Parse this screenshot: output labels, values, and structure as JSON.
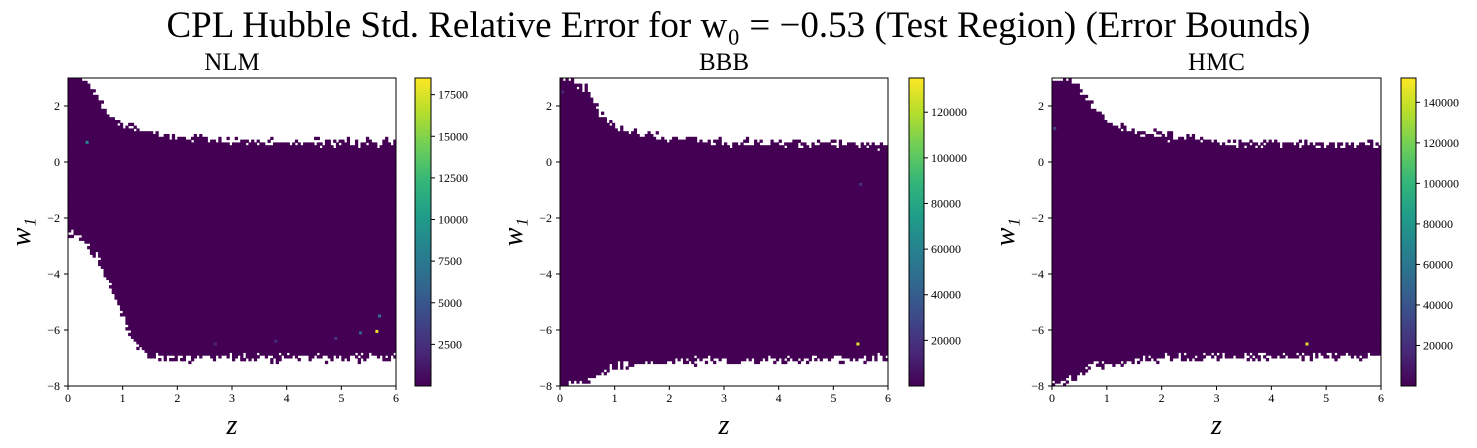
{
  "figure": {
    "title": "CPL Hubble Std. Relative Error for w₀ = −0.53 (Test Region) (Error Bounds)"
  },
  "colormap": {
    "name": "viridis",
    "stops": [
      "#440154",
      "#482878",
      "#3e4989",
      "#31688e",
      "#26828e",
      "#1f9e89",
      "#35b779",
      "#6ece58",
      "#b5de2b",
      "#fde725"
    ]
  },
  "chart_data": [
    {
      "type": "heatmap",
      "title": "NLM",
      "xlabel": "z",
      "ylabel": "w₁",
      "xlim": [
        0,
        6
      ],
      "ylim": [
        -8,
        3
      ],
      "xticks": [
        "0",
        "1",
        "2",
        "3",
        "4",
        "5",
        "6"
      ],
      "yticks": [
        "−8",
        "−6",
        "−4",
        "−2",
        "0",
        "2"
      ],
      "colorbar": {
        "min": 0,
        "max": 18500,
        "ticks": [
          "2500",
          "5000",
          "7500",
          "10000",
          "12500",
          "15000",
          "17500"
        ]
      },
      "background_value": 0,
      "upper_boundary": [
        [
          0,
          3.0
        ],
        [
          0.25,
          3.0
        ],
        [
          0.5,
          2.4
        ],
        [
          0.75,
          1.7
        ],
        [
          1.0,
          1.3
        ],
        [
          1.5,
          1.05
        ],
        [
          2.0,
          0.9
        ],
        [
          3.0,
          0.75
        ],
        [
          4.0,
          0.7
        ],
        [
          6.0,
          0.7
        ]
      ],
      "lower_boundary": [
        [
          0,
          -2.5
        ],
        [
          0.3,
          -2.8
        ],
        [
          0.6,
          -3.6
        ],
        [
          0.9,
          -5.0
        ],
        [
          1.2,
          -6.4
        ],
        [
          1.5,
          -6.9
        ],
        [
          2.0,
          -7.0
        ],
        [
          6.0,
          -7.0
        ]
      ],
      "hot_spots": [
        {
          "z": 0.35,
          "w1": 0.7,
          "value": 8500
        },
        {
          "z": 5.65,
          "w1": -6.05,
          "value": 18000
        },
        {
          "z": 5.7,
          "w1": -5.5,
          "value": 7000
        },
        {
          "z": 5.35,
          "w1": -6.1,
          "value": 6000
        },
        {
          "z": 4.9,
          "w1": -6.3,
          "value": 3000
        },
        {
          "z": 3.8,
          "w1": -6.4,
          "value": 2500
        },
        {
          "z": 2.7,
          "w1": -6.5,
          "value": 2000
        }
      ]
    },
    {
      "type": "heatmap",
      "title": "BBB",
      "xlabel": "z",
      "ylabel": "w₁",
      "xlim": [
        0,
        6
      ],
      "ylim": [
        -8,
        3
      ],
      "xticks": [
        "0",
        "1",
        "2",
        "3",
        "4",
        "5",
        "6"
      ],
      "yticks": [
        "−8",
        "−6",
        "−4",
        "−2",
        "0",
        "2"
      ],
      "colorbar": {
        "min": 0,
        "max": 135000,
        "ticks": [
          "20000",
          "40000",
          "60000",
          "80000",
          "100000",
          "120000"
        ]
      },
      "background_value": 0,
      "upper_boundary": [
        [
          0,
          3.0
        ],
        [
          0.5,
          2.6
        ],
        [
          0.75,
          1.7
        ],
        [
          1.0,
          1.2
        ],
        [
          1.5,
          1.0
        ],
        [
          2.0,
          0.85
        ],
        [
          3.0,
          0.7
        ],
        [
          6.0,
          0.6
        ]
      ],
      "lower_boundary": [
        [
          0,
          -8.0
        ],
        [
          0.5,
          -7.9
        ],
        [
          0.75,
          -7.5
        ],
        [
          1.0,
          -7.3
        ],
        [
          2.0,
          -7.1
        ],
        [
          6.0,
          -7.0
        ]
      ],
      "hot_spots": [
        {
          "z": 5.45,
          "w1": -6.5,
          "value": 130000
        },
        {
          "z": 5.5,
          "w1": -0.8,
          "value": 20000
        },
        {
          "z": 0.05,
          "w1": 2.5,
          "value": 15000
        }
      ]
    },
    {
      "type": "heatmap",
      "title": "HMC",
      "xlabel": "z",
      "ylabel": "w₁",
      "xlim": [
        0,
        6
      ],
      "ylim": [
        -8,
        3
      ],
      "xticks": [
        "0",
        "1",
        "2",
        "3",
        "4",
        "5",
        "6"
      ],
      "yticks": [
        "−8",
        "−6",
        "−4",
        "−2",
        "0",
        "2"
      ],
      "colorbar": {
        "min": 0,
        "max": 152000,
        "ticks": [
          "20000",
          "40000",
          "60000",
          "80000",
          "100000",
          "120000",
          "140000"
        ]
      },
      "background_value": 0,
      "upper_boundary": [
        [
          0,
          3.0
        ],
        [
          0.4,
          2.8
        ],
        [
          0.75,
          2.0
        ],
        [
          1.0,
          1.4
        ],
        [
          1.5,
          1.1
        ],
        [
          2.0,
          0.95
        ],
        [
          3.0,
          0.7
        ],
        [
          6.0,
          0.6
        ]
      ],
      "lower_boundary": [
        [
          0,
          -8.0
        ],
        [
          0.4,
          -7.7
        ],
        [
          0.75,
          -7.3
        ],
        [
          1.0,
          -7.2
        ],
        [
          2.0,
          -7.0
        ],
        [
          6.0,
          -6.9
        ]
      ],
      "hot_spots": [
        {
          "z": 4.65,
          "w1": -6.5,
          "value": 145000
        },
        {
          "z": 0.05,
          "w1": 1.2,
          "value": 30000
        }
      ]
    }
  ]
}
